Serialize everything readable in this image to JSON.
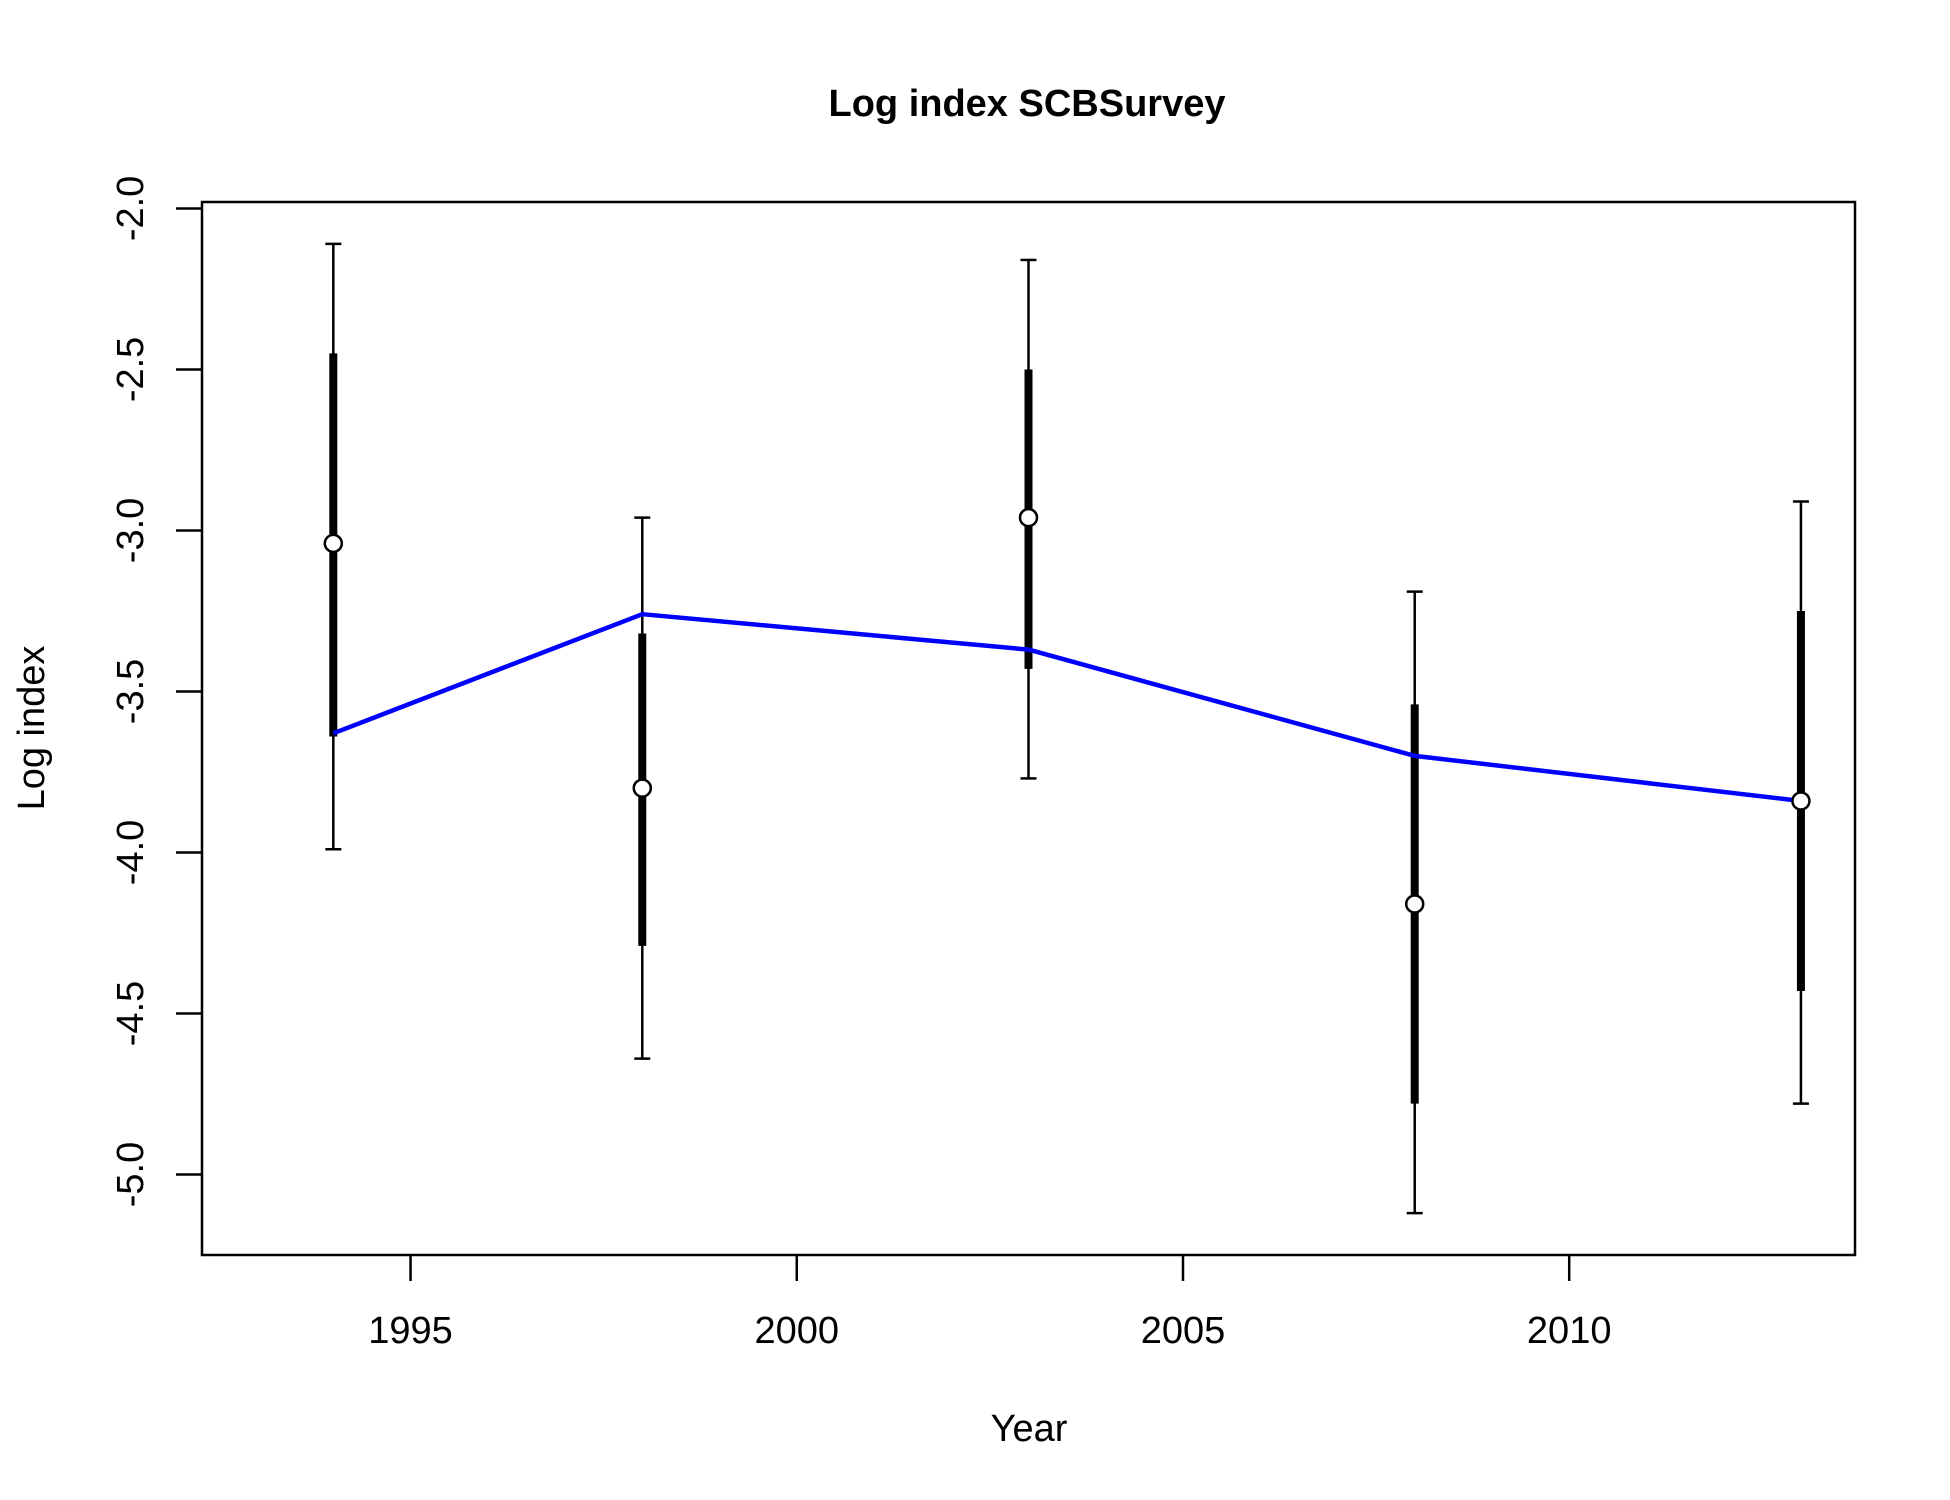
{
  "chart_data": {
    "type": "line",
    "title": "Log index SCBSurvey",
    "xlabel": "Year",
    "ylabel": "Log index",
    "xlim": [
      1992.3,
      2013.7
    ],
    "ylim": [
      -5.25,
      -1.98
    ],
    "x_ticks": [
      1995,
      2000,
      2005,
      2010
    ],
    "x_tick_labels": [
      "1995",
      "2000",
      "2005",
      "2010"
    ],
    "y_ticks": [
      -2.0,
      -2.5,
      -3.0,
      -3.5,
      -4.0,
      -4.5,
      -5.0
    ],
    "y_tick_labels": [
      "-2.0",
      "-2.5",
      "-3.0",
      "-3.5",
      "-4.0",
      "-4.5",
      "-5.0"
    ],
    "grid": false,
    "observed": {
      "x": [
        1994,
        1998,
        2003,
        2008,
        2013
      ],
      "y": [
        -3.04,
        -3.8,
        -2.96,
        -4.16,
        -3.84
      ],
      "outer_lower": [
        -3.99,
        -4.64,
        -3.77,
        -5.12,
        -4.78
      ],
      "outer_upper": [
        -2.11,
        -2.96,
        -2.16,
        -3.19,
        -2.91
      ],
      "inner_lower": [
        -3.64,
        -4.29,
        -3.43,
        -4.78,
        -4.43
      ],
      "inner_upper": [
        -2.45,
        -3.32,
        -2.5,
        -3.54,
        -3.25
      ],
      "color": "#000000"
    },
    "fitted": {
      "x": [
        1994,
        1998,
        2003,
        2008,
        2013
      ],
      "y": [
        -3.63,
        -3.26,
        -3.37,
        -3.7,
        -3.84
      ],
      "color": "#0000ff"
    }
  }
}
